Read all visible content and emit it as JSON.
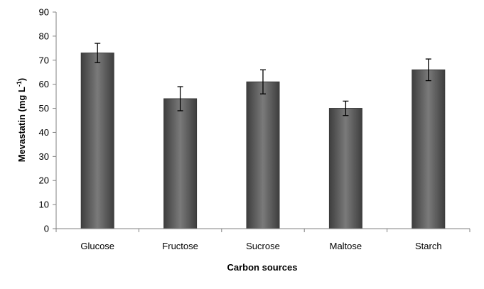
{
  "chart_data": {
    "type": "bar",
    "categories": [
      "Glucose",
      "Fructose",
      "Sucrose",
      "Maltose",
      "Starch"
    ],
    "values": [
      73,
      54,
      61,
      50,
      66
    ],
    "error_bars": [
      4,
      5,
      5,
      3,
      4.5
    ],
    "title": "",
    "xlabel": "Carbon sources",
    "ylabel_main": "Mevastatin (mg L",
    "ylabel_sup": "-1",
    "ylabel_close": ")",
    "ylim": [
      0,
      90
    ],
    "yticks": [
      "0",
      "10",
      "20",
      "30",
      "40",
      "50",
      "60",
      "70",
      "80",
      "90"
    ],
    "grid": false,
    "legend": "none",
    "colors": {
      "bar_dark": "#4a4a4a",
      "bar_mid": "#7a7a7a",
      "bar_edge": "#3a3a3a",
      "axis": "#808080"
    }
  }
}
